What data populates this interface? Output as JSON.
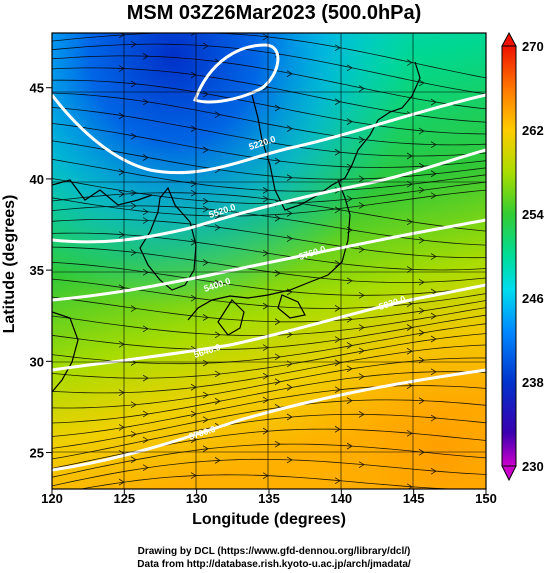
{
  "title": "MSM 03Z26Mar2023 (500.0hPa)",
  "xlabel": "Longitude (degrees)",
  "ylabel": "Latitude  (degrees)",
  "credits": [
    "Drawing by DCL (https://www.gfd-dennou.org/library/dcl/)",
    "Data from http://database.rish.kyoto-u.ac.jp/arch/jmadata/"
  ],
  "chart_data": {
    "type": "heatmap",
    "x_range": [
      120,
      150
    ],
    "y_range": [
      23,
      48
    ],
    "x_ticks": [
      120,
      125,
      130,
      135,
      140,
      145,
      150
    ],
    "y_ticks": [
      25,
      30,
      35,
      40,
      45
    ],
    "colorbar": {
      "min": 230,
      "max": 270,
      "tick_labels": [
        230,
        238,
        246,
        254,
        262,
        270
      ],
      "colors": [
        "#cc00cc",
        "#4400aa",
        "#0022cc",
        "#0066ee",
        "#00aaff",
        "#00dddd",
        "#00ddaa",
        "#22cc44",
        "#55cc22",
        "#99dd00",
        "#ccdd00",
        "#eecc00",
        "#ffaa00",
        "#ff7700",
        "#ff3300",
        "#ee1100"
      ]
    },
    "contour_labels": [
      "5220.0",
      "5520.0",
      "5400.0",
      "5640.0",
      "5700.0",
      "5760.0",
      "5820.0"
    ],
    "grid": true,
    "field": "500hPa temperature with wind streamlines and geopotential height contours"
  }
}
